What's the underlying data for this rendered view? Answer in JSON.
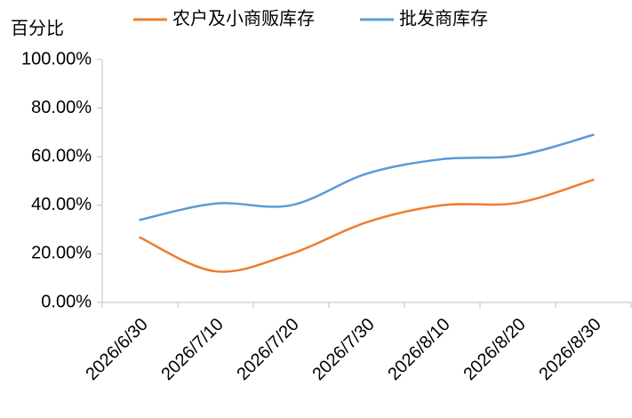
{
  "chart_data": {
    "type": "line",
    "ylabel": "百分比",
    "categories": [
      "2026/6/30",
      "2026/7/10",
      "2026/7/20",
      "2026/7/30",
      "2026/8/10",
      "2026/8/20",
      "2026/8/30"
    ],
    "series": [
      {
        "name": "农户及小商贩库存",
        "color": "#ed7d31",
        "values": [
          26.7,
          12.8,
          20,
          33,
          40,
          41,
          50.5
        ]
      },
      {
        "name": "批发商库存",
        "color": "#5b9bd5",
        "values": [
          34,
          40.7,
          40,
          53,
          59,
          60.5,
          69
        ]
      }
    ],
    "ylim": [
      0,
      100
    ],
    "yticks": [
      {
        "value": 0,
        "label": "0.00%"
      },
      {
        "value": 20,
        "label": "20.00%"
      },
      {
        "value": 40,
        "label": "40.00%"
      },
      {
        "value": 60,
        "label": "60.00%"
      },
      {
        "value": 80,
        "label": "80.00%"
      },
      {
        "value": 100,
        "label": "100.00%"
      }
    ],
    "smooth": true,
    "legend": "top"
  }
}
